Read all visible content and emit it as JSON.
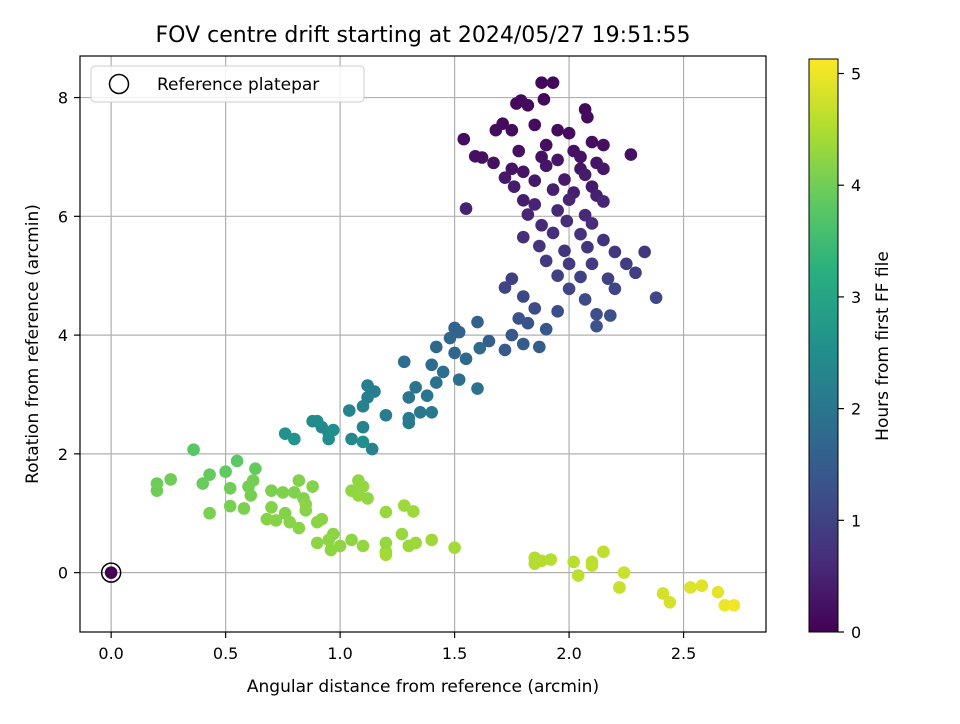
{
  "chart_data": {
    "type": "scatter",
    "title": "FOV centre drift starting at 2024/05/27 19:51:55",
    "xlabel": "Angular distance from reference (arcmin)",
    "ylabel": "Rotation from reference (arcmin)",
    "xlim": [
      -0.136,
      2.86
    ],
    "ylim": [
      -1.0,
      8.7
    ],
    "xticks": [
      0.0,
      0.5,
      1.0,
      1.5,
      2.0,
      2.5
    ],
    "yticks": [
      0,
      2,
      4,
      6,
      8
    ],
    "xtick_labels": [
      "0.0",
      "0.5",
      "1.0",
      "1.5",
      "2.0",
      "2.5"
    ],
    "ytick_labels": [
      "0",
      "2",
      "4",
      "6",
      "8"
    ],
    "grid": true,
    "legend": {
      "position": "top-left",
      "entries": [
        "Reference platepar"
      ]
    },
    "colorbar": {
      "label": "Hours from first FF file",
      "colormap": "viridis",
      "range": [
        0,
        5.13
      ],
      "ticks": [
        0,
        1,
        2,
        3,
        4,
        5
      ],
      "tick_labels": [
        "0",
        "1",
        "2",
        "3",
        "4",
        "5"
      ]
    },
    "reference_point": {
      "x": 0.0,
      "y": 0.0
    },
    "points": [
      [
        0.0,
        0.0,
        0.0
      ],
      [
        1.88,
        8.25,
        0.1
      ],
      [
        1.93,
        8.25,
        0.1
      ],
      [
        1.79,
        7.95,
        0.12
      ],
      [
        1.77,
        7.9,
        0.12
      ],
      [
        1.89,
        7.97,
        0.12
      ],
      [
        1.82,
        7.87,
        0.14
      ],
      [
        2.07,
        7.8,
        0.14
      ],
      [
        2.08,
        7.67,
        0.15
      ],
      [
        1.71,
        7.56,
        0.15
      ],
      [
        1.75,
        7.45,
        0.16
      ],
      [
        1.85,
        7.54,
        0.16
      ],
      [
        1.95,
        7.45,
        0.17
      ],
      [
        2.0,
        7.4,
        0.18
      ],
      [
        1.68,
        7.45,
        0.17
      ],
      [
        1.54,
        7.3,
        0.18
      ],
      [
        1.9,
        7.2,
        0.2
      ],
      [
        2.1,
        7.25,
        0.2
      ],
      [
        2.15,
        7.2,
        0.2
      ],
      [
        2.27,
        7.04,
        0.22
      ],
      [
        1.59,
        7.01,
        0.22
      ],
      [
        1.62,
        6.99,
        0.22
      ],
      [
        1.67,
        6.9,
        0.24
      ],
      [
        1.78,
        7.1,
        0.24
      ],
      [
        1.88,
        7.0,
        0.25
      ],
      [
        2.02,
        7.1,
        0.26
      ],
      [
        2.05,
        7.0,
        0.27
      ],
      [
        1.75,
        6.8,
        0.28
      ],
      [
        1.8,
        6.75,
        0.29
      ],
      [
        1.9,
        6.85,
        0.3
      ],
      [
        1.95,
        6.95,
        0.3
      ],
      [
        2.05,
        6.8,
        0.31
      ],
      [
        2.12,
        6.9,
        0.32
      ],
      [
        2.15,
        6.8,
        0.33
      ],
      [
        1.72,
        6.65,
        0.34
      ],
      [
        1.85,
        6.6,
        0.35
      ],
      [
        1.98,
        6.62,
        0.36
      ],
      [
        2.1,
        6.5,
        0.38
      ],
      [
        1.76,
        6.5,
        0.4
      ],
      [
        2.07,
        6.7,
        0.4
      ],
      [
        1.8,
        6.27,
        0.42
      ],
      [
        1.93,
        6.45,
        0.44
      ],
      [
        2.02,
        6.4,
        0.46
      ],
      [
        2.12,
        6.35,
        0.48
      ],
      [
        1.55,
        6.13,
        0.5
      ],
      [
        1.85,
        6.2,
        0.52
      ],
      [
        2.0,
        6.28,
        0.53
      ],
      [
        2.15,
        6.25,
        0.55
      ],
      [
        1.82,
        6.03,
        0.56
      ],
      [
        1.95,
        6.1,
        0.58
      ],
      [
        2.07,
        6.02,
        0.6
      ],
      [
        1.88,
        5.85,
        0.62
      ],
      [
        1.99,
        5.92,
        0.64
      ],
      [
        2.1,
        5.88,
        0.66
      ],
      [
        1.8,
        5.65,
        0.68
      ],
      [
        1.93,
        5.72,
        0.7
      ],
      [
        2.05,
        5.7,
        0.72
      ],
      [
        2.15,
        5.6,
        0.74
      ],
      [
        1.87,
        5.5,
        0.76
      ],
      [
        1.98,
        5.42,
        0.78
      ],
      [
        2.08,
        5.48,
        0.8
      ],
      [
        2.2,
        5.4,
        0.82
      ],
      [
        2.33,
        5.4,
        0.84
      ],
      [
        1.9,
        5.25,
        0.86
      ],
      [
        2.0,
        5.2,
        0.88
      ],
      [
        2.1,
        5.2,
        0.9
      ],
      [
        2.25,
        5.2,
        0.92
      ],
      [
        2.29,
        5.05,
        0.94
      ],
      [
        1.75,
        4.95,
        0.96
      ],
      [
        1.95,
        5.0,
        0.98
      ],
      [
        2.05,
        4.98,
        1.0
      ],
      [
        2.17,
        4.95,
        1.02
      ],
      [
        1.72,
        4.8,
        1.05
      ],
      [
        2.0,
        4.78,
        1.08
      ],
      [
        2.2,
        4.78,
        1.1
      ],
      [
        2.38,
        4.63,
        1.12
      ],
      [
        1.8,
        4.65,
        1.15
      ],
      [
        2.07,
        4.6,
        1.18
      ],
      [
        1.85,
        4.45,
        1.2
      ],
      [
        1.95,
        4.4,
        1.22
      ],
      [
        2.12,
        4.35,
        1.25
      ],
      [
        2.18,
        4.33,
        1.28
      ],
      [
        2.12,
        4.15,
        1.3
      ],
      [
        1.78,
        4.28,
        1.32
      ],
      [
        1.82,
        4.2,
        1.35
      ],
      [
        1.9,
        4.1,
        1.38
      ],
      [
        1.75,
        4.0,
        1.4
      ],
      [
        1.72,
        3.75,
        1.45
      ],
      [
        1.8,
        3.85,
        1.48
      ],
      [
        1.87,
        3.8,
        1.5
      ],
      [
        1.65,
        3.9,
        1.55
      ],
      [
        1.6,
        4.22,
        1.6
      ],
      [
        1.52,
        4.05,
        1.65
      ],
      [
        1.5,
        4.12,
        1.65
      ],
      [
        1.48,
        3.95,
        1.7
      ],
      [
        1.42,
        3.8,
        1.72
      ],
      [
        1.5,
        3.7,
        1.75
      ],
      [
        1.55,
        3.6,
        1.78
      ],
      [
        1.61,
        3.78,
        1.8
      ],
      [
        1.4,
        3.5,
        1.82
      ],
      [
        1.28,
        3.55,
        1.85
      ],
      [
        1.45,
        3.38,
        1.88
      ],
      [
        1.52,
        3.25,
        1.9
      ],
      [
        1.6,
        3.1,
        1.92
      ],
      [
        1.42,
        3.2,
        1.95
      ],
      [
        1.33,
        3.12,
        1.98
      ],
      [
        1.3,
        2.95,
        2.0
      ],
      [
        1.38,
        2.98,
        2.02
      ],
      [
        1.35,
        2.7,
        2.05
      ],
      [
        1.4,
        2.7,
        2.08
      ],
      [
        1.3,
        2.6,
        2.1
      ],
      [
        1.3,
        2.52,
        2.12
      ],
      [
        1.2,
        2.65,
        2.15
      ],
      [
        1.15,
        3.05,
        2.18
      ],
      [
        1.12,
        3.15,
        2.2
      ],
      [
        1.12,
        2.95,
        2.22
      ],
      [
        1.1,
        2.8,
        2.25
      ],
      [
        1.1,
        2.45,
        2.28
      ],
      [
        1.14,
        2.08,
        2.3
      ],
      [
        1.04,
        2.73,
        2.32
      ],
      [
        1.05,
        2.25,
        2.35
      ],
      [
        0.95,
        2.35,
        2.4
      ],
      [
        0.92,
        2.45,
        2.42
      ],
      [
        0.88,
        2.55,
        2.45
      ],
      [
        0.9,
        2.55,
        2.48
      ],
      [
        0.95,
        2.25,
        2.5
      ],
      [
        0.97,
        2.4,
        2.52
      ],
      [
        1.1,
        2.2,
        2.55
      ],
      [
        0.76,
        2.34,
        2.6
      ],
      [
        0.8,
        2.25,
        2.65
      ],
      [
        0.36,
        2.07,
        3.8
      ],
      [
        0.55,
        1.88,
        3.85
      ],
      [
        0.5,
        1.7,
        3.88
      ],
      [
        0.43,
        1.65,
        3.9
      ],
      [
        0.63,
        1.75,
        3.92
      ],
      [
        0.4,
        1.5,
        3.95
      ],
      [
        0.2,
        1.5,
        3.98
      ],
      [
        0.2,
        1.38,
        4.0
      ],
      [
        0.26,
        1.57,
        4.0
      ],
      [
        0.52,
        1.42,
        4.02
      ],
      [
        0.6,
        1.45,
        4.04
      ],
      [
        0.62,
        1.55,
        4.05
      ],
      [
        0.61,
        1.3,
        4.06
      ],
      [
        0.52,
        1.12,
        4.08
      ],
      [
        0.43,
        1.0,
        4.1
      ],
      [
        0.58,
        1.08,
        4.1
      ],
      [
        0.7,
        1.38,
        4.12
      ],
      [
        0.75,
        1.35,
        4.13
      ],
      [
        0.8,
        1.35,
        4.14
      ],
      [
        0.82,
        1.55,
        4.15
      ],
      [
        0.84,
        1.25,
        4.16
      ],
      [
        0.88,
        1.45,
        4.16
      ],
      [
        0.7,
        1.1,
        4.17
      ],
      [
        0.76,
        1.0,
        4.18
      ],
      [
        0.85,
        1.05,
        4.19
      ],
      [
        0.72,
        0.88,
        4.2
      ],
      [
        0.68,
        0.9,
        4.2
      ],
      [
        0.78,
        0.85,
        4.21
      ],
      [
        0.82,
        0.75,
        4.22
      ],
      [
        0.9,
        0.85,
        4.22
      ],
      [
        0.92,
        0.9,
        4.23
      ],
      [
        0.85,
        1.15,
        4.23
      ],
      [
        0.97,
        0.65,
        4.24
      ],
      [
        0.9,
        0.5,
        4.25
      ],
      [
        0.95,
        0.55,
        4.25
      ],
      [
        0.96,
        0.38,
        4.26
      ],
      [
        1.05,
        0.55,
        4.27
      ],
      [
        1.0,
        0.45,
        4.27
      ],
      [
        1.08,
        1.55,
        4.28
      ],
      [
        1.05,
        1.38,
        4.28
      ],
      [
        1.12,
        1.25,
        4.29
      ],
      [
        1.1,
        1.45,
        4.3
      ],
      [
        1.08,
        1.3,
        4.3
      ],
      [
        1.1,
        0.45,
        4.31
      ],
      [
        1.2,
        0.5,
        4.32
      ],
      [
        1.2,
        0.35,
        4.33
      ],
      [
        1.2,
        1.02,
        4.34
      ],
      [
        1.27,
        0.65,
        4.35
      ],
      [
        1.3,
        0.45,
        4.36
      ],
      [
        1.33,
        0.5,
        4.37
      ],
      [
        1.32,
        1.03,
        4.38
      ],
      [
        1.28,
        1.13,
        4.38
      ],
      [
        1.4,
        0.55,
        4.4
      ],
      [
        1.5,
        0.42,
        4.42
      ],
      [
        1.2,
        0.3,
        4.43
      ],
      [
        1.85,
        0.25,
        4.55
      ],
      [
        1.85,
        0.15,
        4.56
      ],
      [
        1.88,
        0.2,
        4.57
      ],
      [
        1.92,
        0.22,
        4.58
      ],
      [
        2.02,
        0.18,
        4.6
      ],
      [
        2.04,
        -0.05,
        4.62
      ],
      [
        2.1,
        0.18,
        4.63
      ],
      [
        2.1,
        0.12,
        4.64
      ],
      [
        2.15,
        0.35,
        4.65
      ],
      [
        2.22,
        -0.25,
        4.7
      ],
      [
        2.22,
        -0.25,
        4.72
      ],
      [
        2.24,
        0.0,
        4.73
      ],
      [
        2.41,
        -0.35,
        4.8
      ],
      [
        2.44,
        -0.5,
        4.82
      ],
      [
        2.53,
        -0.25,
        4.88
      ],
      [
        2.58,
        -0.22,
        4.9
      ],
      [
        2.65,
        -0.33,
        4.95
      ],
      [
        2.68,
        -0.55,
        5.0
      ],
      [
        2.72,
        -0.55,
        5.05
      ]
    ]
  }
}
